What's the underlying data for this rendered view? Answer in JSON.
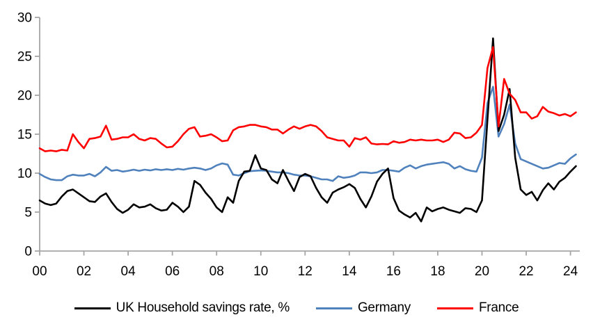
{
  "chart_data": {
    "type": "line",
    "title": "",
    "frequency": "quarterly",
    "x_range": [
      "2000Q1",
      "2024Q2"
    ],
    "x_tick_labels": [
      "00",
      "02",
      "04",
      "06",
      "08",
      "10",
      "12",
      "14",
      "16",
      "18",
      "20",
      "22",
      "24"
    ],
    "quarters_per_tick": 8,
    "y_ticks": [
      0,
      5,
      10,
      15,
      20,
      25,
      30
    ],
    "ylim": [
      0,
      30
    ],
    "grid": "off",
    "legend_position": "bottom",
    "axis_color": "#a6a6a6",
    "tick_label_color": "#000000",
    "series": [
      {
        "name": "UK Household savings rate, %",
        "color": "#000000",
        "values": [
          6.5,
          6.1,
          5.9,
          6.1,
          7.0,
          7.7,
          7.9,
          7.4,
          6.9,
          6.4,
          6.3,
          7.0,
          7.4,
          6.3,
          5.4,
          4.9,
          5.3,
          6.0,
          5.6,
          5.7,
          6.0,
          5.5,
          5.2,
          5.3,
          6.2,
          5.7,
          5.0,
          5.7,
          9.0,
          8.5,
          7.5,
          6.7,
          5.6,
          5.0,
          6.9,
          6.2,
          9.0,
          10.2,
          10.3,
          12.3,
          10.6,
          10.4,
          9.2,
          8.7,
          10.4,
          9.0,
          7.7,
          9.5,
          9.9,
          9.6,
          8.1,
          6.9,
          6.2,
          7.5,
          7.9,
          8.2,
          8.6,
          8.1,
          6.7,
          5.6,
          7.0,
          8.9,
          9.9,
          10.6,
          6.8,
          5.2,
          4.7,
          4.3,
          4.9,
          3.8,
          5.6,
          5.1,
          5.4,
          5.6,
          5.3,
          5.1,
          4.9,
          5.5,
          5.4,
          5.0,
          6.5,
          16.9,
          27.3,
          15.4,
          17.5,
          20.8,
          12.0,
          7.9,
          7.2,
          7.6,
          6.5,
          7.8,
          8.7,
          7.9,
          8.9,
          9.4,
          10.2,
          10.9
        ]
      },
      {
        "name": "Germany",
        "color": "#4f81bd",
        "values": [
          9.9,
          9.5,
          9.2,
          9.1,
          9.1,
          9.6,
          9.8,
          9.7,
          9.7,
          9.9,
          9.6,
          10.1,
          10.8,
          10.3,
          10.4,
          10.2,
          10.3,
          10.45,
          10.3,
          10.45,
          10.35,
          10.5,
          10.4,
          10.5,
          10.4,
          10.55,
          10.45,
          10.6,
          10.7,
          10.6,
          10.4,
          10.6,
          11.0,
          11.25,
          11.1,
          9.8,
          9.7,
          10.0,
          10.25,
          10.3,
          10.35,
          10.3,
          10.2,
          10.1,
          10.1,
          10.0,
          9.8,
          9.7,
          9.7,
          9.6,
          9.4,
          9.2,
          9.2,
          9.0,
          9.6,
          9.4,
          9.5,
          9.7,
          10.1,
          10.1,
          10.0,
          10.1,
          10.4,
          10.4,
          10.3,
          10.2,
          10.7,
          11.0,
          10.6,
          10.9,
          11.1,
          11.2,
          11.3,
          11.4,
          11.2,
          10.6,
          10.9,
          10.5,
          10.3,
          10.2,
          12.0,
          19.0,
          21.1,
          14.7,
          16.3,
          18.8,
          13.8,
          11.8,
          11.5,
          11.2,
          10.9,
          10.6,
          10.7,
          11.0,
          11.3,
          11.2,
          11.9,
          12.4
        ]
      },
      {
        "name": "France",
        "color": "#ff0000",
        "values": [
          13.2,
          12.8,
          12.9,
          12.8,
          13.0,
          12.9,
          15.0,
          14.0,
          13.2,
          14.4,
          14.5,
          14.7,
          16.1,
          14.3,
          14.4,
          14.6,
          14.6,
          15.0,
          14.4,
          14.2,
          14.5,
          14.4,
          13.8,
          13.3,
          13.4,
          14.1,
          15.0,
          15.7,
          15.9,
          14.7,
          14.8,
          15.0,
          14.6,
          14.1,
          14.2,
          15.5,
          15.9,
          16.0,
          16.2,
          16.2,
          16.0,
          15.9,
          15.6,
          15.6,
          15.1,
          15.6,
          16.0,
          15.7,
          16.0,
          16.2,
          16.0,
          15.4,
          14.6,
          14.4,
          14.2,
          14.2,
          13.4,
          14.5,
          14.3,
          14.6,
          13.8,
          13.7,
          13.75,
          13.7,
          14.1,
          13.9,
          14.0,
          14.3,
          14.2,
          14.3,
          14.2,
          14.2,
          14.3,
          14.0,
          14.3,
          15.2,
          15.1,
          14.5,
          14.6,
          15.2,
          16.2,
          23.5,
          26.2,
          16.0,
          22.1,
          20.2,
          19.4,
          17.8,
          17.8,
          17.0,
          17.3,
          18.5,
          17.9,
          17.7,
          17.4,
          17.6,
          17.3,
          17.8
        ]
      }
    ]
  }
}
